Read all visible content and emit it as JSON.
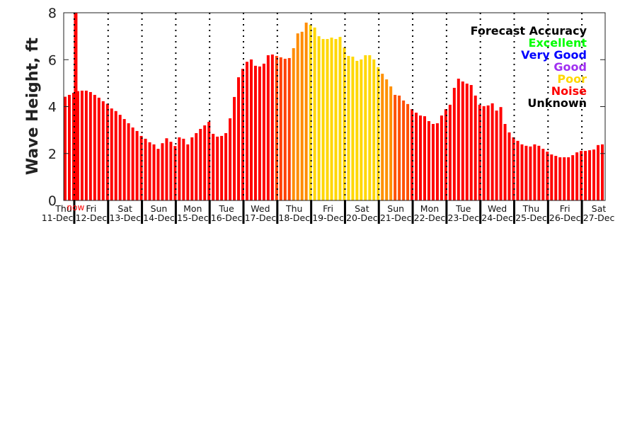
{
  "chart_data": {
    "type": "bar",
    "title": "",
    "xlabel": "",
    "ylabel": "Wave Height, ft",
    "ylim": [
      0,
      8
    ],
    "yticks": [
      0,
      2,
      4,
      6,
      8
    ],
    "x_units": "hours since Thu 11-Dec 00:00",
    "xlim": [
      16.5,
      400.5
    ],
    "start_hour": 17.5,
    "step_hours": 3,
    "now_hour": 25,
    "now_label": "now",
    "now_color": "#ff0000",
    "values": [
      4.42,
      4.5,
      4.59,
      4.66,
      4.68,
      4.68,
      4.62,
      4.5,
      4.38,
      4.23,
      4.12,
      3.92,
      3.81,
      3.65,
      3.47,
      3.29,
      3.11,
      2.96,
      2.75,
      2.63,
      2.48,
      2.39,
      2.2,
      2.44,
      2.65,
      2.5,
      2.32,
      2.69,
      2.63,
      2.39,
      2.69,
      2.87,
      3.05,
      3.2,
      3.35,
      2.84,
      2.72,
      2.75,
      2.87,
      3.5,
      4.41,
      5.25,
      5.61,
      5.91,
      6.01,
      5.74,
      5.71,
      5.83,
      6.19,
      6.22,
      6.16,
      6.1,
      6.04,
      6.07,
      6.49,
      7.12,
      7.19,
      7.58,
      7.49,
      7.37,
      7.0,
      6.88,
      6.88,
      6.94,
      6.88,
      6.97,
      6.52,
      6.16,
      6.13,
      5.95,
      6.01,
      6.19,
      6.19,
      6.01,
      5.68,
      5.4,
      5.16,
      4.86,
      4.5,
      4.47,
      4.26,
      4.11,
      3.89,
      3.74,
      3.62,
      3.59,
      3.38,
      3.26,
      3.29,
      3.62,
      3.89,
      4.08,
      4.8,
      5.19,
      5.07,
      4.98,
      4.92,
      4.47,
      4.08,
      4.02,
      4.05,
      4.14,
      3.83,
      3.98,
      3.26,
      2.9,
      2.69,
      2.54,
      2.39,
      2.33,
      2.3,
      2.39,
      2.33,
      2.2,
      2.08,
      1.96,
      1.9,
      1.84,
      1.84,
      1.84,
      1.93,
      2.05,
      2.11,
      2.11,
      2.14,
      2.17,
      2.36,
      2.39
    ],
    "color_segments": [
      {
        "count": 50,
        "color": "#ff0000"
      },
      {
        "count": 4,
        "color": "#ff4000"
      },
      {
        "count": 4,
        "color": "#ff8c00"
      },
      {
        "count": 17,
        "color": "#ffd700"
      },
      {
        "count": 3,
        "color": "#ff9000"
      },
      {
        "count": 4,
        "color": "#ff5000"
      },
      {
        "count": 46,
        "color": "#ff0000"
      }
    ],
    "days": [
      {
        "name": "Thu",
        "date": "11-Dec"
      },
      {
        "name": "Fri",
        "date": "12-Dec"
      },
      {
        "name": "Sat",
        "date": "13-Dec"
      },
      {
        "name": "Sun",
        "date": "14-Dec"
      },
      {
        "name": "Mon",
        "date": "15-Dec"
      },
      {
        "name": "Tue",
        "date": "16-Dec"
      },
      {
        "name": "Wed",
        "date": "17-Dec"
      },
      {
        "name": "Thu",
        "date": "18-Dec"
      },
      {
        "name": "Fri",
        "date": "19-Dec"
      },
      {
        "name": "Sat",
        "date": "20-Dec"
      },
      {
        "name": "Sun",
        "date": "21-Dec"
      },
      {
        "name": "Mon",
        "date": "22-Dec"
      },
      {
        "name": "Tue",
        "date": "23-Dec"
      },
      {
        "name": "Wed",
        "date": "24-Dec"
      },
      {
        "name": "Thu",
        "date": "25-Dec"
      },
      {
        "name": "Fri",
        "date": "26-Dec"
      },
      {
        "name": "Sat",
        "date": "27-Dec"
      }
    ],
    "legend": {
      "placement": "top-right",
      "title": "Forecast Accuracy",
      "entries": [
        {
          "label": "Excellent",
          "color": "#00ff00"
        },
        {
          "label": "Very Good",
          "color": "#0000ff"
        },
        {
          "label": "Good",
          "color": "#a030f0"
        },
        {
          "label": "Poor",
          "color": "#ffd700"
        },
        {
          "label": "Noise",
          "color": "#ff0000"
        },
        {
          "label": "Unknown",
          "color": "#000000"
        }
      ]
    }
  }
}
